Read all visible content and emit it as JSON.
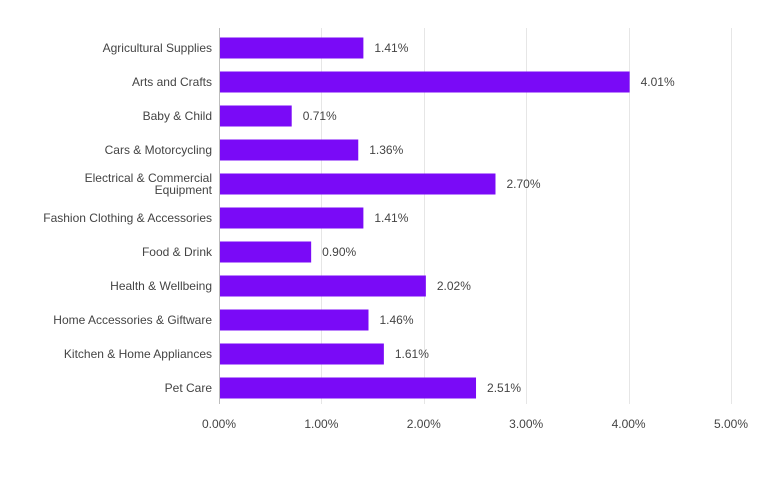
{
  "chart_data": {
    "type": "bar",
    "orientation": "horizontal",
    "title": "",
    "xlabel": "",
    "ylabel": "",
    "categories": [
      "Agricultural Supplies",
      "Arts and Crafts",
      "Baby & Child",
      "Cars & Motorcycling",
      "Electrical & Commercial Equipment",
      "Fashion Clothing & Accessories",
      "Food & Drink",
      "Health & Wellbeing",
      "Home Accessories & Giftware",
      "Kitchen & Home Appliances",
      "Pet Care"
    ],
    "category_lines": [
      [
        "Agricultural Supplies"
      ],
      [
        "Arts and Crafts"
      ],
      [
        "Baby & Child"
      ],
      [
        "Cars & Motorcycling"
      ],
      [
        "Electrical & Commercial",
        "Equipment"
      ],
      [
        "Fashion Clothing & Accessories"
      ],
      [
        "Food & Drink"
      ],
      [
        "Health & Wellbeing"
      ],
      [
        "Home Accessories & Giftware"
      ],
      [
        "Kitchen & Home Appliances"
      ],
      [
        "Pet Care"
      ]
    ],
    "values": [
      1.41,
      4.01,
      0.71,
      1.36,
      2.7,
      1.41,
      0.9,
      2.02,
      1.46,
      1.61,
      2.51
    ],
    "value_labels": [
      "1.41%",
      "4.01%",
      "0.71%",
      "1.36%",
      "2.70%",
      "1.41%",
      "0.90%",
      "2.02%",
      "1.46%",
      "1.61%",
      "2.51%"
    ],
    "xlim": [
      0,
      5
    ],
    "x_ticks": [
      0,
      1,
      2,
      3,
      4,
      5
    ],
    "x_tick_labels": [
      "0.00%",
      "1.00%",
      "2.00%",
      "3.00%",
      "4.00%",
      "5.00%"
    ],
    "grid": true,
    "legend": "none",
    "bar_color": "#7a0af7"
  }
}
